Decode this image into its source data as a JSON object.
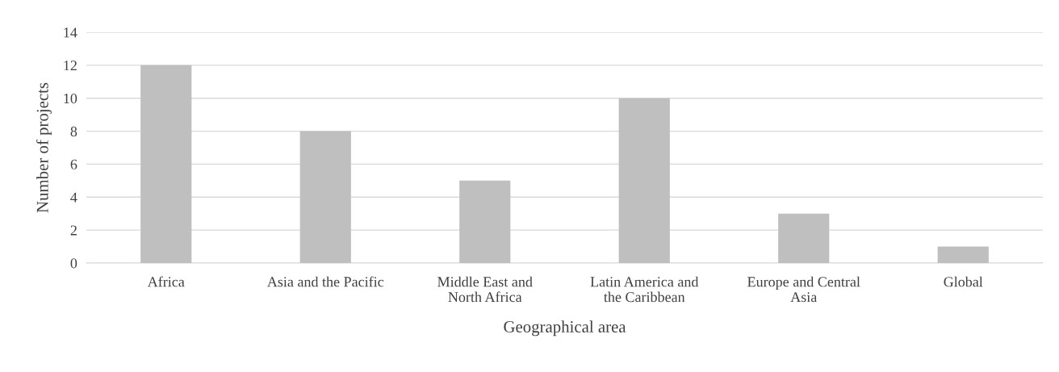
{
  "chart_data": {
    "type": "bar",
    "xlabel": "Geographical area",
    "ylabel": "Number of projects",
    "categories": [
      "Africa",
      "Asia and the Pacific",
      "Middle East and\nNorth Africa",
      "Latin America and\nthe Caribbean",
      "Europe and Central\nAsia",
      "Global"
    ],
    "values": [
      12,
      8,
      5,
      10,
      3,
      1
    ],
    "color": "#bfbfbf",
    "ylim": [
      0,
      14
    ],
    "yticks": [
      0,
      2,
      4,
      6,
      8,
      10,
      12,
      14
    ],
    "grid": "y",
    "legend": false
  }
}
